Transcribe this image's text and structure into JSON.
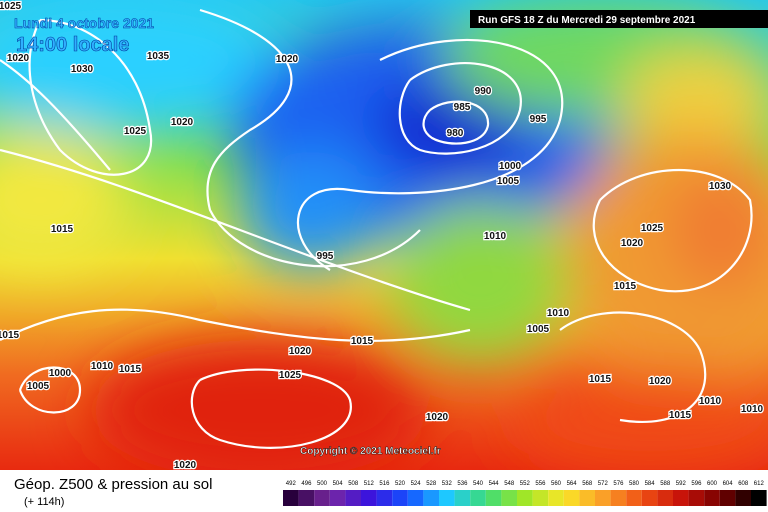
{
  "header": {
    "date": "Lundi 4 octobre 2021",
    "time": "14:00 locale",
    "run": "Run GFS 18 Z du Mercredi 29 septembre 2021"
  },
  "copyright": "Copyright © 2021 Meteociel.fr",
  "legend": {
    "title": "Géop. Z500 & pression au sol",
    "lead": "(+ 114h)",
    "ticks": [
      492,
      496,
      500,
      504,
      508,
      512,
      516,
      520,
      524,
      528,
      532,
      536,
      540,
      544,
      548,
      552,
      556,
      560,
      564,
      568,
      572,
      576,
      580,
      584,
      588,
      592,
      596,
      600,
      604,
      608,
      612
    ]
  },
  "isobar_labels": [
    1025,
    1020,
    1030,
    1035,
    1020,
    1025,
    1020,
    990,
    985,
    980,
    995,
    1000,
    1005,
    1015,
    995,
    1010,
    1030,
    1025,
    1020,
    1015,
    1010,
    1005,
    1015,
    1020,
    1015,
    1000,
    1010,
    1015,
    1005,
    1025,
    1015,
    1020,
    1010,
    1015,
    1020,
    1020,
    1010
  ]
}
